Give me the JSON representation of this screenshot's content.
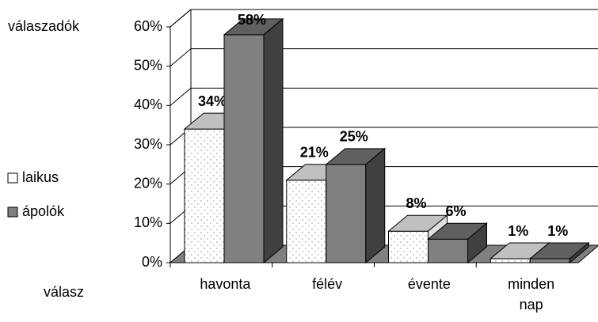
{
  "chart_data": {
    "type": "bar3d",
    "y_label": "válaszadók",
    "x_label": "válasz",
    "categories": [
      "havonta",
      "félév",
      "évente",
      "minden nap"
    ],
    "series": [
      {
        "name": "laikus",
        "color": "#ffffff",
        "top_color": "#c0c0c0",
        "side_color": "#e0e0e0",
        "pattern": "dots",
        "values": [
          34,
          21,
          8,
          1
        ],
        "value_labels": [
          "34%",
          "21%",
          "8%",
          "1%"
        ]
      },
      {
        "name": "ápolók",
        "color": "#808080",
        "top_color": "#606060",
        "side_color": "#404040",
        "values": [
          58,
          25,
          6,
          1
        ],
        "value_labels": [
          "58%",
          "25%",
          "6%",
          "1%"
        ]
      }
    ],
    "ylim": [
      0,
      60
    ],
    "yticks": [
      {
        "value": 0,
        "label": "0%"
      },
      {
        "value": 10,
        "label": "10%"
      },
      {
        "value": 20,
        "label": "20%"
      },
      {
        "value": 30,
        "label": "30%"
      },
      {
        "value": 40,
        "label": "40%"
      },
      {
        "value": 50,
        "label": "50%"
      },
      {
        "value": 60,
        "label": "60%"
      }
    ],
    "grid": true
  }
}
